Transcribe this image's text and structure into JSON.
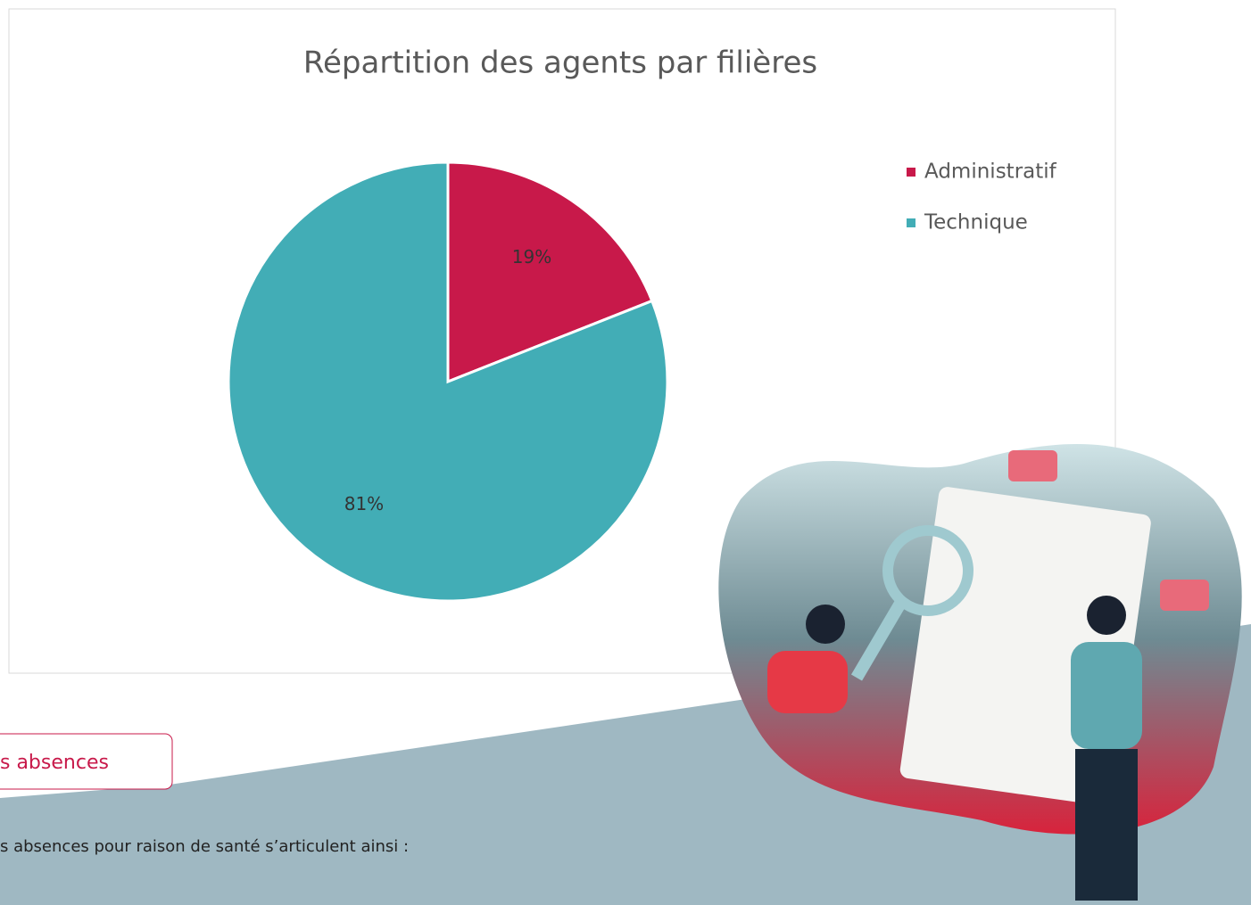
{
  "chart_data": {
    "type": "pie",
    "title": "Répartition des agents par filières",
    "categories": [
      "Administratif",
      "Technique"
    ],
    "values": [
      19,
      81
    ],
    "value_labels": [
      "19%",
      "81%"
    ],
    "colors": [
      "#c8194a",
      "#42adb6"
    ],
    "legend": "right"
  },
  "section": {
    "button": "s absences",
    "text": "s absences pour raison de santé s’articulent ainsi :"
  }
}
